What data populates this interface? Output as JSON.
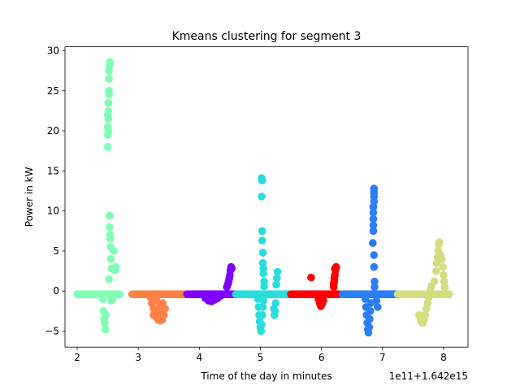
{
  "chart_data": {
    "type": "scatter",
    "title": "Kmeans clustering for segment 3",
    "xlabel": "Time of the day in minutes",
    "ylabel": "Power in kW",
    "x_offset_label": "1e11+1.642e15",
    "xlim": [
      1.8,
      8.4
    ],
    "ylim": [
      -7,
      30.5
    ],
    "x_ticks": [
      {
        "value": 2,
        "label": "2"
      },
      {
        "value": 3,
        "label": "3"
      },
      {
        "value": 4,
        "label": "4"
      },
      {
        "value": 5,
        "label": "5"
      },
      {
        "value": 6,
        "label": "6"
      },
      {
        "value": 7,
        "label": "7"
      },
      {
        "value": 8,
        "label": "8"
      }
    ],
    "y_ticks": [
      {
        "value": -5,
        "label": "−5"
      },
      {
        "value": 0,
        "label": "0"
      },
      {
        "value": 5,
        "label": "5"
      },
      {
        "value": 10,
        "label": "10"
      },
      {
        "value": 15,
        "label": "15"
      },
      {
        "value": 20,
        "label": "20"
      },
      {
        "value": 25,
        "label": "25"
      },
      {
        "value": 30,
        "label": "30"
      }
    ],
    "grid": false,
    "legend": "none",
    "series": [
      {
        "color": "#80ffb4",
        "x_range": [
          2.0,
          2.7
        ],
        "baseline": -0.4,
        "points": [
          [
            2.42,
            -1.0
          ],
          [
            2.43,
            -2.5
          ],
          [
            2.44,
            -3.5
          ],
          [
            2.45,
            -4.0
          ],
          [
            2.46,
            -4.8
          ],
          [
            2.47,
            -3.0
          ],
          [
            2.5,
            18.0
          ],
          [
            2.5,
            19.5
          ],
          [
            2.5,
            20.5
          ],
          [
            2.51,
            21.5
          ],
          [
            2.51,
            22.5
          ],
          [
            2.51,
            23.5
          ],
          [
            2.52,
            24.5
          ],
          [
            2.52,
            26.5
          ],
          [
            2.52,
            27.5
          ],
          [
            2.53,
            28.2
          ],
          [
            2.53,
            28.6
          ],
          [
            2.52,
            25.0
          ],
          [
            2.51,
            20.0
          ],
          [
            2.5,
            22.0
          ],
          [
            2.53,
            9.4
          ],
          [
            2.53,
            8.0
          ],
          [
            2.54,
            7.0
          ],
          [
            2.54,
            6.5
          ],
          [
            2.55,
            5.5
          ],
          [
            2.55,
            4.0
          ],
          [
            2.56,
            2.8
          ],
          [
            2.52,
            1.5
          ],
          [
            2.6,
            5.0
          ],
          [
            2.63,
            3.0
          ],
          [
            2.62,
            2.6
          ],
          [
            2.56,
            -1.2
          ],
          [
            2.58,
            -0.9
          ]
        ]
      },
      {
        "color": "#ff8147",
        "x_range": [
          2.9,
          3.8
        ],
        "baseline": -0.4,
        "points": [
          [
            3.2,
            -0.8
          ],
          [
            3.22,
            -1.5
          ],
          [
            3.25,
            -2.2
          ],
          [
            3.28,
            -2.8
          ],
          [
            3.3,
            -3.3
          ],
          [
            3.33,
            -3.6
          ],
          [
            3.36,
            -3.7
          ],
          [
            3.39,
            -3.6
          ],
          [
            3.42,
            -3.0
          ],
          [
            3.3,
            -1.2
          ],
          [
            3.35,
            -2.0
          ],
          [
            3.4,
            -1.5
          ],
          [
            3.25,
            -3.0
          ],
          [
            3.32,
            -2.6
          ],
          [
            3.38,
            -3.0
          ],
          [
            3.44,
            -2.2
          ]
        ]
      },
      {
        "color": "#8000ff",
        "x_range": [
          3.8,
          4.6
        ],
        "baseline": -0.4,
        "points": [
          [
            4.1,
            -0.9
          ],
          [
            4.15,
            -1.2
          ],
          [
            4.2,
            -1.3
          ],
          [
            4.25,
            -1.1
          ],
          [
            4.3,
            -0.9
          ],
          [
            4.35,
            -0.6
          ],
          [
            4.45,
            0.5
          ],
          [
            4.48,
            1.2
          ],
          [
            4.5,
            2.0
          ],
          [
            4.51,
            2.6
          ],
          [
            4.52,
            3.0
          ],
          [
            4.53,
            2.8
          ],
          [
            4.49,
            1.6
          ],
          [
            4.47,
            0.9
          ]
        ]
      },
      {
        "color": "#2adddd",
        "x_range": [
          4.6,
          5.5
        ],
        "baseline": -0.4,
        "points": [
          [
            4.96,
            -1.0
          ],
          [
            4.97,
            -2.0
          ],
          [
            4.98,
            -3.0
          ],
          [
            4.99,
            -3.8
          ],
          [
            5.0,
            -4.5
          ],
          [
            5.01,
            -5.0
          ],
          [
            5.02,
            -4.2
          ],
          [
            5.03,
            -3.0
          ],
          [
            5.04,
            -2.0
          ],
          [
            5.05,
            -1.2
          ],
          [
            5.02,
            14.1
          ],
          [
            5.03,
            13.8
          ],
          [
            5.02,
            11.8
          ],
          [
            5.03,
            7.5
          ],
          [
            5.03,
            6.3
          ],
          [
            5.04,
            4.8
          ],
          [
            5.04,
            3.5
          ],
          [
            5.05,
            2.8
          ],
          [
            5.05,
            2.2
          ],
          [
            5.06,
            1.2
          ],
          [
            5.06,
            0.6
          ],
          [
            5.28,
            2.4
          ],
          [
            5.27,
            1.6
          ],
          [
            5.26,
            0.8
          ],
          [
            5.25,
            -1.5
          ],
          [
            5.24,
            -2.5
          ],
          [
            5.23,
            -3.0
          ],
          [
            5.22,
            -2.2
          ]
        ]
      },
      {
        "color": "#ff0000",
        "x_range": [
          5.5,
          6.3
        ],
        "baseline": -0.4,
        "points": [
          [
            5.83,
            1.7
          ],
          [
            5.95,
            -1.0
          ],
          [
            5.97,
            -1.5
          ],
          [
            5.99,
            -1.9
          ],
          [
            6.01,
            -1.6
          ],
          [
            6.03,
            -1.2
          ],
          [
            6.2,
            0.5
          ],
          [
            6.21,
            1.2
          ],
          [
            6.22,
            2.0
          ],
          [
            6.23,
            2.6
          ],
          [
            6.24,
            3.0
          ],
          [
            6.22,
            2.8
          ],
          [
            6.21,
            1.6
          ],
          [
            6.2,
            0.9
          ]
        ]
      },
      {
        "color": "#2c7ef7",
        "x_range": [
          6.35,
          7.25
        ],
        "baseline": -0.4,
        "points": [
          [
            6.72,
            -1.0
          ],
          [
            6.73,
            -2.0
          ],
          [
            6.74,
            -3.0
          ],
          [
            6.75,
            -4.0
          ],
          [
            6.76,
            -4.8
          ],
          [
            6.77,
            -5.2
          ],
          [
            6.78,
            -4.5
          ],
          [
            6.79,
            -3.5
          ],
          [
            6.8,
            -2.5
          ],
          [
            6.81,
            -1.5
          ],
          [
            6.86,
            12.8
          ],
          [
            6.86,
            12.3
          ],
          [
            6.86,
            11.8
          ],
          [
            6.86,
            11.2
          ],
          [
            6.85,
            10.5
          ],
          [
            6.85,
            9.8
          ],
          [
            6.85,
            9.0
          ],
          [
            6.85,
            8.2
          ],
          [
            6.85,
            7.5
          ],
          [
            6.84,
            6.0
          ],
          [
            6.86,
            4.5
          ],
          [
            6.86,
            3.0
          ],
          [
            6.87,
            1.2
          ],
          [
            6.87,
            0.5
          ],
          [
            6.9,
            -1.2
          ],
          [
            6.92,
            -2.0
          ]
        ]
      },
      {
        "color": "#d4dd80",
        "x_range": [
          7.25,
          8.1
        ],
        "baseline": -0.4,
        "points": [
          [
            7.6,
            -3.0
          ],
          [
            7.62,
            -3.5
          ],
          [
            7.64,
            -3.9
          ],
          [
            7.66,
            -4.0
          ],
          [
            7.68,
            -3.6
          ],
          [
            7.7,
            -3.0
          ],
          [
            7.72,
            -2.2
          ],
          [
            7.74,
            -1.5
          ],
          [
            7.76,
            -0.8
          ],
          [
            7.78,
            0.0
          ],
          [
            7.8,
            0.6
          ],
          [
            7.85,
            1.2
          ],
          [
            7.88,
            2.5
          ],
          [
            7.89,
            3.5
          ],
          [
            7.9,
            4.2
          ],
          [
            7.91,
            5.0
          ],
          [
            7.92,
            5.8
          ],
          [
            7.93,
            6.1
          ],
          [
            7.95,
            4.5
          ],
          [
            7.97,
            4.0
          ],
          [
            7.99,
            3.0
          ],
          [
            8.0,
            2.0
          ],
          [
            8.01,
            1.2
          ],
          [
            8.02,
            0.5
          ]
        ]
      }
    ]
  }
}
